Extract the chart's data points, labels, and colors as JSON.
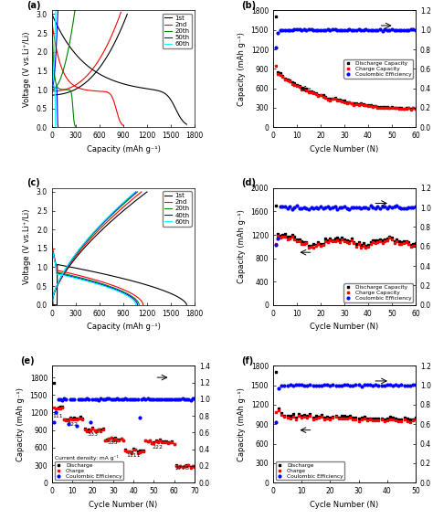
{
  "panel_a": {
    "legend": [
      "1st",
      "2nd",
      "20th",
      "50th",
      "60th"
    ],
    "colors": [
      "black",
      "red",
      "green",
      "blue",
      "cyan"
    ],
    "xlabel": "Capacity (mAh g⁻¹)",
    "ylabel": "Voltage (V vs.Li⁺/Li)",
    "xlim": [
      0,
      1800
    ],
    "ylim": [
      0,
      3.1
    ],
    "xticks": [
      0,
      300,
      600,
      900,
      1200,
      1500,
      1800
    ],
    "yticks": [
      0.0,
      0.5,
      1.0,
      1.5,
      2.0,
      2.5,
      3.0
    ]
  },
  "panel_b": {
    "xlabel": "Cycle Number (N)",
    "ylabel_left": "Capacity (mAh g⁻¹)",
    "xlim": [
      0,
      60
    ],
    "ylim_left": [
      0,
      1800
    ],
    "ylim_right": [
      0.0,
      1.2
    ],
    "legend": [
      "Discharge Capacity",
      "Charge Capacity",
      "Coulombic Efficiency"
    ],
    "xticks": [
      0,
      10,
      20,
      30,
      40,
      50,
      60
    ],
    "yticks_left": [
      0,
      300,
      600,
      900,
      1200,
      1500,
      1800
    ],
    "yticks_right": [
      0.0,
      0.2,
      0.4,
      0.6,
      0.8,
      1.0,
      1.2
    ]
  },
  "panel_c": {
    "legend": [
      "1st",
      "2nd",
      "20th",
      "40th",
      "60th"
    ],
    "colors": [
      "black",
      "red",
      "green",
      "blue",
      "cyan"
    ],
    "xlabel": "Capacity (mAh g⁻¹)",
    "ylabel": "Voltage (V vs.Li⁺/Li)",
    "xlim": [
      0,
      1800
    ],
    "ylim": [
      0,
      3.1
    ],
    "xticks": [
      0,
      300,
      600,
      900,
      1200,
      1500,
      1800
    ],
    "yticks": [
      0.0,
      0.5,
      1.0,
      1.5,
      2.0,
      2.5,
      3.0
    ]
  },
  "panel_d": {
    "xlabel": "Cycle Number (N)",
    "ylabel_left": "Capacity (mAh g⁻¹)",
    "xlim": [
      0,
      60
    ],
    "ylim_left": [
      0,
      2000
    ],
    "ylim_right": [
      0.0,
      1.2
    ],
    "legend": [
      "Discharge Capacity",
      "Charge Capacity",
      "Coulombic Efficiency"
    ],
    "xticks": [
      0,
      10,
      20,
      30,
      40,
      50,
      60
    ],
    "yticks_left": [
      0,
      400,
      800,
      1200,
      1600,
      2000
    ],
    "yticks_right": [
      0.0,
      0.2,
      0.4,
      0.6,
      0.8,
      1.0,
      1.2
    ]
  },
  "panel_e": {
    "xlabel": "Cycle Number (N)",
    "ylabel_left": "Capacity (mAh g⁻¹)",
    "xlim": [
      0,
      70
    ],
    "ylim_left": [
      0,
      2000
    ],
    "ylim_right": [
      0.0,
      1.4
    ],
    "legend": [
      "Discharge",
      "Charge",
      "Coulombic Efficiency"
    ],
    "annotation_note": "Current density: mA g⁻¹",
    "xticks": [
      0,
      10,
      20,
      30,
      40,
      50,
      60,
      70
    ],
    "yticks_left": [
      0,
      300,
      600,
      900,
      1200,
      1500,
      1800
    ],
    "yticks_right": [
      0.0,
      0.2,
      0.4,
      0.6,
      0.8,
      1.0,
      1.2,
      1.4
    ]
  },
  "panel_f": {
    "xlabel": "Cycle Number (N)",
    "ylabel_left": "Capacity (mAh g⁻¹)",
    "xlim": [
      0,
      50
    ],
    "ylim_left": [
      0,
      1800
    ],
    "ylim_right": [
      0.0,
      1.2
    ],
    "legend": [
      "Discharge",
      "Charge",
      "Coulombic Efficiency"
    ],
    "xticks": [
      0,
      10,
      20,
      30,
      40,
      50
    ],
    "yticks_left": [
      0,
      300,
      600,
      900,
      1200,
      1500,
      1800
    ],
    "yticks_right": [
      0.0,
      0.2,
      0.4,
      0.6,
      0.8,
      1.0,
      1.2
    ]
  }
}
